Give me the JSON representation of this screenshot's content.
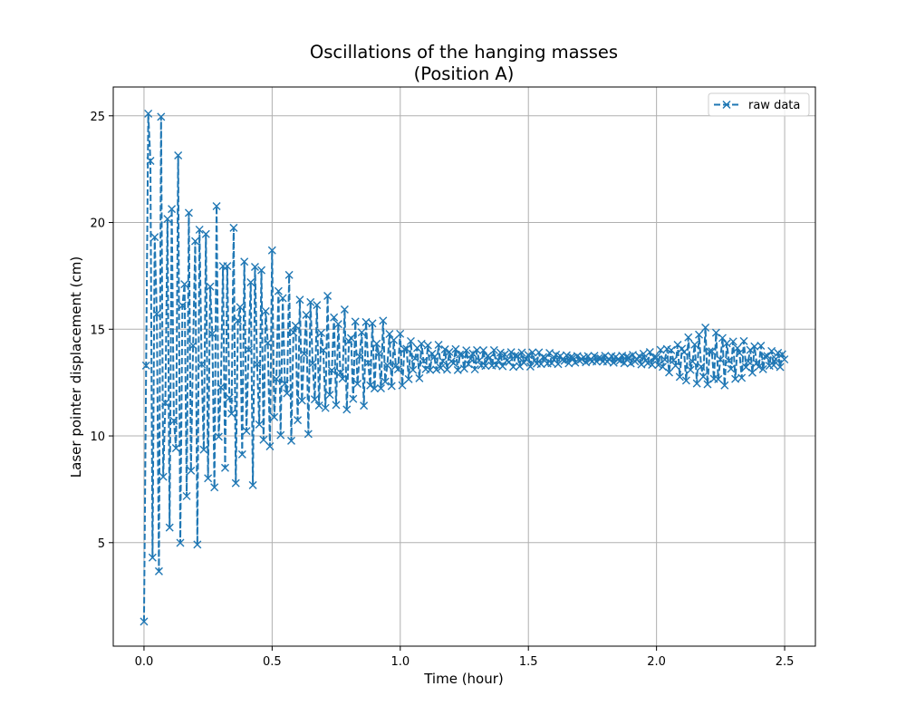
{
  "chart_data": {
    "type": "line",
    "title_line1": "Oscillations of the hanging masses",
    "title_line2": "(Position A)",
    "xlabel": "Time (hour)",
    "ylabel": "Laser pointer displacement (cm)",
    "xlim": [
      -0.12,
      2.62
    ],
    "ylim": [
      0.15,
      26.35
    ],
    "xticks": [
      0.0,
      0.5,
      1.0,
      1.5,
      2.0,
      2.5
    ],
    "xtick_labels": [
      "0.0",
      "0.5",
      "1.0",
      "1.5",
      "2.0",
      "2.5"
    ],
    "yticks": [
      5,
      10,
      15,
      20,
      25
    ],
    "ytick_labels": [
      "5",
      "10",
      "15",
      "20",
      "25"
    ],
    "grid": true,
    "legend_position": "top-right",
    "colors": {
      "series": "#1f77b4",
      "grid": "#b0b0b0",
      "axes": "#000000"
    },
    "series": [
      {
        "name": "raw data",
        "style": "dashed line with x markers",
        "envelope": {
          "t_start": 0.0,
          "t_end": 2.5,
          "step_hours": 0.00833,
          "center_cm": 13.6,
          "x_points": [
            0.0,
            0.02,
            0.1,
            0.2,
            0.3,
            0.4,
            0.5,
            0.6,
            0.7,
            0.8,
            0.9,
            1.0,
            1.1,
            1.2,
            1.3,
            1.4,
            1.5,
            1.6,
            1.7,
            1.8,
            1.9,
            2.0,
            2.05,
            2.1,
            2.15,
            2.2,
            2.25,
            2.3,
            2.35,
            2.4,
            2.45,
            2.5
          ],
          "amplitude_cm": [
            12.3,
            11.5,
            9.3,
            7.7,
            6.1,
            5.4,
            4.5,
            3.4,
            2.7,
            2.2,
            1.8,
            1.2,
            0.7,
            0.5,
            0.45,
            0.35,
            0.35,
            0.25,
            0.15,
            0.15,
            0.2,
            0.35,
            0.6,
            0.9,
            1.2,
            1.4,
            1.2,
            1.0,
            0.8,
            0.6,
            0.4,
            0.3
          ],
          "period_points_per_cycle": 2.6
        },
        "first_value_cm": 1.3,
        "peak_value_cm": 25.1
      }
    ]
  }
}
